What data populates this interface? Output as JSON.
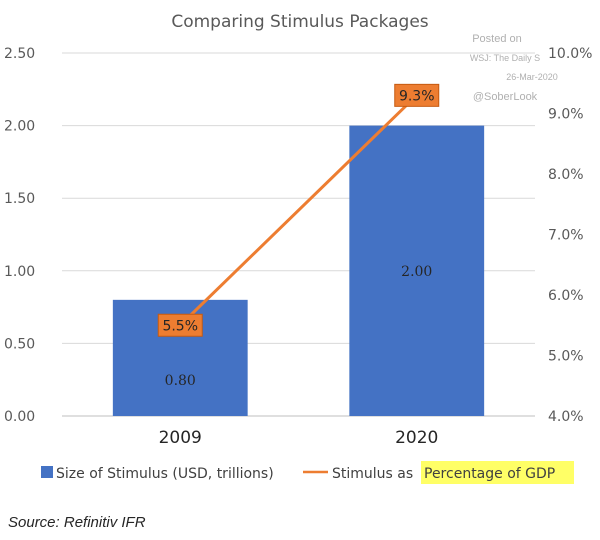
{
  "chart_data": {
    "type": "bar",
    "title": "Comparing Stimulus Packages",
    "categories": [
      "2009",
      "2020"
    ],
    "ylim": [
      0,
      2.5
    ],
    "y_ticks": [
      "0.00",
      "0.50",
      "1.00",
      "1.50",
      "2.00",
      "2.50"
    ],
    "y2lim": [
      4.0,
      10.0
    ],
    "y2_ticks": [
      "4.0%",
      "5.0%",
      "6.0%",
      "7.0%",
      "8.0%",
      "9.0%",
      "10.0%"
    ],
    "grid": true,
    "legend_position": "bottom",
    "series": [
      {
        "name": "Size of Stimulus (USD, trillions)",
        "type": "bar",
        "axis": "left",
        "color": "#4472c4",
        "values": [
          0.8,
          2.0
        ],
        "labels": [
          "0.80",
          "2.00"
        ]
      },
      {
        "name": "Stimulus as Percentage of GDP",
        "type": "line",
        "axis": "right",
        "color": "#ed7d31",
        "values": [
          5.5,
          9.3
        ],
        "labels": [
          "5.5%",
          "9.3%"
        ]
      }
    ],
    "legend": {
      "bar_label": "Size of Stimulus (USD, trillions)",
      "line_label_prefix": "Stimulus as ",
      "line_label_highlight": "Percentage of GDP",
      "highlight_color": "#ffff66"
    },
    "watermark": [
      "Posted on",
      "WSJ: The Daily S",
      "26-Mar-2020",
      "@SoberLook"
    ],
    "source": "Source: Refinitiv IFR"
  }
}
